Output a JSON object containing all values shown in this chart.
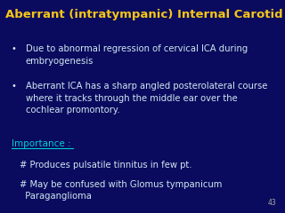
{
  "bg_color": "#0a0a5e",
  "title": "Aberrant (intratympanic) Internal Carotid Artery",
  "title_color": "#f5c518",
  "title_fontsize": 9.5,
  "bullet_color": "#d0e8f0",
  "bullet_fontsize": 7.2,
  "importance_color": "#00cfcf",
  "importance_fontsize": 7.5,
  "page_number": "43",
  "page_num_color": "#aaaaaa",
  "page_num_fontsize": 5.5,
  "bullets": [
    "Due to abnormal regression of cervical ICA during\nembryogenesis",
    "Aberrant ICA has a sharp angled posterolateral course\nwhere it tracks through the middle ear over the\ncochlear promontory."
  ],
  "importance_label": "Importance :",
  "importance_items": [
    "# Produces pulsatile tinnitus in few pt.",
    "# May be confused with Glomus tympanicum\n  Paraganglioma"
  ]
}
